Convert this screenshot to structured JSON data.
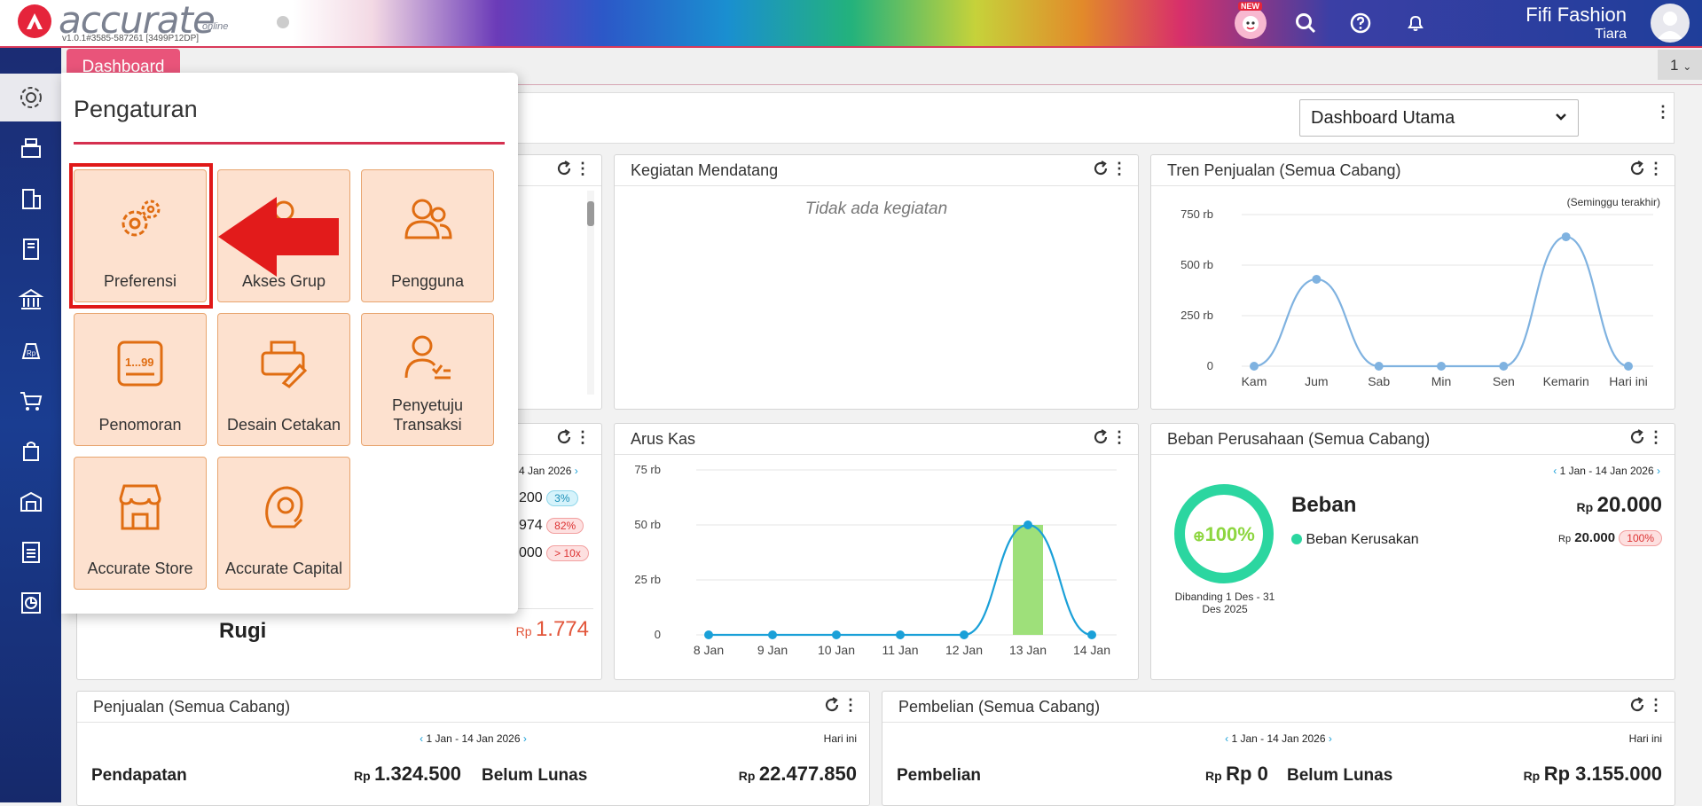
{
  "app": {
    "logo_text": "accurate",
    "logo_sub": "online",
    "version": "v1.0.1#3585-587261 [3499P12DP]",
    "new_badge": "NEW",
    "company": "Fifi Fashion",
    "user": "Tiara"
  },
  "tabs": {
    "dashboard": "Dashboard",
    "count": "1"
  },
  "dashboard_select": "Dashboard Utama",
  "settings_menu": {
    "title": "Pengaturan",
    "tiles": [
      {
        "label": "Preferensi",
        "icon": "gears-icon"
      },
      {
        "label": "Akses Grup",
        "icon": "user-group-icon"
      },
      {
        "label": "Pengguna",
        "icon": "users-icon"
      },
      {
        "label": "Penomoran",
        "icon": "numbering-icon"
      },
      {
        "label": "Desain Cetakan",
        "icon": "print-design-icon"
      },
      {
        "label": "Penyetuju Transaksi",
        "icon": "approver-icon"
      },
      {
        "label": "Accurate Store",
        "icon": "store-icon"
      },
      {
        "label": "Accurate Capital",
        "icon": "capital-icon"
      }
    ],
    "numbering_glyph": "1...99"
  },
  "kegiatan": {
    "title": "Kegiatan Mendatang",
    "empty": "Tidak ada kegiatan"
  },
  "tren": {
    "title": "Tren Penjualan (Semua Cabang)",
    "period": "(Seminggu terakhir)"
  },
  "aruskas": {
    "title": "Arus Kas"
  },
  "profit_partial": {
    "date": "4 Jan 2026",
    "rows": [
      {
        "value": "200",
        "pill": "3%"
      },
      {
        "value": "974",
        "pill": "82%"
      },
      {
        "value": "000",
        "pill": "> 10x"
      }
    ],
    "label": "Rugi",
    "currency": "Rp",
    "amount": "1.774"
  },
  "beban": {
    "title": "Beban Perusahaan (Semua Cabang)",
    "range": "1 Jan - 14 Jan 2026",
    "donut_pct": "100%",
    "compare": "Dibanding 1 Des - 31 Des 2025",
    "heading": "Beban",
    "currency": "Rp",
    "total": "20.000",
    "item": "Beban Kerusakan",
    "item_value": "20.000",
    "item_pill": "100%",
    "item_currency": "Rp"
  },
  "penjualan": {
    "title": "Penjualan (Semua Cabang)",
    "range": "1 Jan - 14 Jan 2026",
    "today": "Hari ini",
    "left_label": "Pendapatan",
    "left_currency": "Rp",
    "left_value": "1.324.500",
    "right_label": "Belum Lunas",
    "right_currency": "Rp",
    "right_value": "22.477.850"
  },
  "pembelian": {
    "title": "Pembelian (Semua Cabang)",
    "range": "1 Jan - 14 Jan 2026",
    "today": "Hari ini",
    "left_label": "Pembelian",
    "left_currency": "Rp",
    "left_value": "Rp 0",
    "right_label": "Belum Lunas",
    "right_currency": "Rp",
    "right_value": "Rp 3.155.000"
  },
  "chart_data": [
    {
      "type": "line",
      "title": "Tren Penjualan (Semua Cabang)",
      "categories": [
        "Kam",
        "Jum",
        "Sab",
        "Min",
        "Sen",
        "Kemarin",
        "Hari ini"
      ],
      "values": [
        0,
        430000,
        0,
        0,
        0,
        640000,
        0
      ],
      "ylim": [
        0,
        750000
      ],
      "ytick_labels": [
        "0",
        "250 rb",
        "500 rb",
        "750 rb"
      ],
      "yticks": [
        0,
        250000,
        500000,
        750000
      ],
      "color": "#7fb2e0",
      "grid": true
    },
    {
      "type": "line",
      "title": "Arus Kas",
      "categories": [
        "8 Jan",
        "9 Jan",
        "10 Jan",
        "11 Jan",
        "12 Jan",
        "13 Jan",
        "14 Jan"
      ],
      "values": [
        0,
        0,
        0,
        0,
        0,
        50000,
        0
      ],
      "bar_values": [
        0,
        0,
        0,
        0,
        0,
        50000,
        0
      ],
      "ylim": [
        0,
        75000
      ],
      "ytick_labels": [
        "0",
        "25 rb",
        "50 rb",
        "75 rb"
      ],
      "yticks": [
        0,
        25000,
        50000,
        75000
      ],
      "color": "#1aa0d8",
      "bar_color": "#9ee07a",
      "grid": true
    }
  ]
}
